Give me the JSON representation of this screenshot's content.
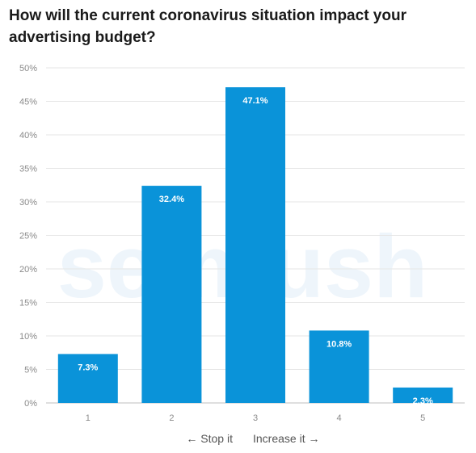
{
  "chart_data": {
    "type": "bar",
    "title": "How will the current coronavirus situation impact your advertising budget?",
    "categories": [
      "1",
      "2",
      "3",
      "4",
      "5"
    ],
    "values": [
      7.3,
      32.4,
      47.1,
      10.8,
      2.3
    ],
    "data_labels": [
      "7.3%",
      "32.4%",
      "47.1%",
      "10.8%",
      "2.3%"
    ],
    "ylim": [
      0,
      50
    ],
    "yticks": [
      0,
      5,
      10,
      15,
      20,
      25,
      30,
      35,
      40,
      45,
      50
    ],
    "ytick_labels": [
      "0%",
      "5%",
      "10%",
      "15%",
      "20%",
      "25%",
      "30%",
      "35%",
      "40%",
      "45%",
      "50%"
    ],
    "xlabel_left": "← Stop it",
    "xlabel_right": "Increase it →",
    "bar_color": "#0a93d9",
    "grid": true,
    "watermark": "semrush"
  }
}
